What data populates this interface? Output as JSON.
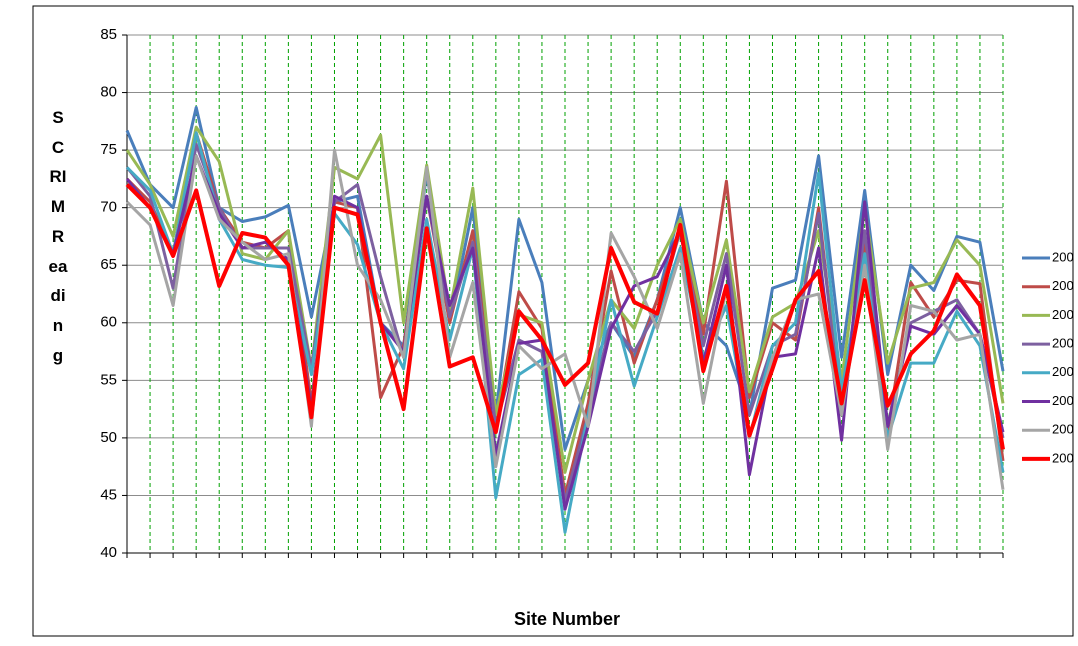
{
  "chart_data": {
    "type": "line",
    "y_label": "SCRIM Reading",
    "x_label": "Site Number",
    "categories": [
      null,
      null,
      null,
      null,
      null,
      null,
      null,
      null,
      null,
      null,
      null,
      null,
      null,
      null,
      null,
      null,
      null,
      null,
      null,
      null,
      null,
      null,
      null,
      null,
      null,
      null,
      null,
      null,
      null,
      null,
      null,
      null,
      null,
      null,
      null,
      null,
      null,
      null,
      null
    ],
    "ylim": [
      40,
      85
    ],
    "yticks": [
      40,
      45,
      50,
      55,
      60,
      65,
      70,
      75,
      80,
      85
    ],
    "grid": true,
    "legend": "right",
    "series": [
      {
        "name": "200",
        "color": "#4a7ebb",
        "values": [
          76.7,
          72,
          70,
          78.7,
          70,
          68.8,
          69.2,
          70.2,
          60.5,
          70.5,
          71,
          60,
          58,
          73,
          60,
          70,
          52,
          69,
          63.5,
          49,
          55,
          60,
          57,
          62,
          70,
          60,
          58,
          52,
          63,
          63.7,
          74.5,
          57,
          71.5,
          55.5,
          65,
          62.8,
          67.5,
          67,
          55.8
        ]
      },
      {
        "name": "200",
        "color": "#be4b48",
        "values": [
          72.5,
          70.5,
          66,
          76.5,
          70,
          67,
          66.5,
          68,
          53,
          70.5,
          70,
          53.5,
          58,
          71,
          60,
          68,
          51,
          62.7,
          59.5,
          45,
          53,
          64.5,
          56.5,
          62,
          68,
          59,
          72.3,
          53.5,
          60,
          58.5,
          70,
          52,
          67,
          50.5,
          63.5,
          60.5,
          63.7,
          63.4,
          48
        ]
      },
      {
        "name": "200",
        "color": "#98b954",
        "values": [
          75,
          72,
          67.5,
          77,
          74,
          66,
          65.5,
          68,
          56,
          73.5,
          72.5,
          76.3,
          60,
          73.7,
          61,
          71.7,
          52,
          60.7,
          60,
          47,
          55,
          62,
          59.5,
          65,
          69,
          60,
          67.2,
          54,
          60.5,
          61.7,
          68,
          55,
          70,
          56.5,
          63,
          63.5,
          67.2,
          65,
          53
        ]
      },
      {
        "name": "200",
        "color": "#7d60a0",
        "values": [
          73.5,
          71,
          63,
          75.5,
          70,
          66.5,
          66.5,
          66.5,
          56,
          70.5,
          72,
          64,
          57,
          71,
          60.5,
          67,
          51,
          58.5,
          57.5,
          44.5,
          52,
          60,
          57.5,
          61,
          68,
          58,
          66,
          52,
          58,
          59,
          69.5,
          52,
          68,
          51,
          60,
          61,
          62,
          59,
          50
        ]
      },
      {
        "name": "200",
        "color": "#46aac5",
        "values": [
          73.5,
          71.5,
          66,
          76.5,
          69,
          65.5,
          65,
          64.8,
          55.5,
          69.5,
          66.8,
          60,
          56,
          69,
          58.5,
          66.5,
          44.8,
          55.5,
          56.8,
          41.8,
          52,
          62,
          54.5,
          60.5,
          66.5,
          57,
          61.5,
          50,
          58,
          60,
          73,
          54,
          66,
          50,
          56.5,
          56.5,
          61,
          58,
          47
        ]
      },
      {
        "name": "200",
        "color": "#7030a0",
        "values": [
          72.5,
          70,
          66,
          74.5,
          69.5,
          66.5,
          67,
          65.5,
          52.5,
          71,
          70,
          60,
          57.5,
          71,
          61.5,
          66.5,
          48.5,
          58.2,
          58.5,
          43.8,
          51,
          59.5,
          63.2,
          64,
          68,
          56.5,
          65,
          46.8,
          57,
          57.3,
          66.5,
          49.8,
          70.5,
          51,
          59.7,
          59,
          61.5,
          59,
          50.5
        ]
      },
      {
        "name": "200",
        "color": "#a5a5a5",
        "values": [
          70.5,
          68.5,
          61.5,
          74.5,
          69,
          67,
          65.5,
          66,
          51,
          75,
          65,
          62,
          57,
          73.5,
          57,
          63.5,
          47.5,
          58,
          56,
          57.3,
          51,
          67.8,
          64,
          59.5,
          66,
          53,
          63,
          50,
          57,
          62,
          62.5,
          52,
          65,
          49,
          61.5,
          61,
          58.5,
          59,
          45.5
        ]
      },
      {
        "name": "200",
        "color": "#ff0000",
        "width": 4,
        "values": [
          72,
          70,
          65.8,
          71.5,
          63.2,
          67.8,
          67.4,
          65,
          51.8,
          70,
          69.4,
          60,
          52.5,
          68.2,
          56.2,
          57,
          50.5,
          61,
          58.5,
          54.6,
          56.5,
          66.5,
          61.8,
          60.8,
          68.5,
          55.8,
          63.2,
          50.2,
          56,
          62,
          64.5,
          53,
          63.7,
          52.8,
          57.3,
          59.3,
          64.2,
          61.5,
          49
        ]
      }
    ]
  }
}
